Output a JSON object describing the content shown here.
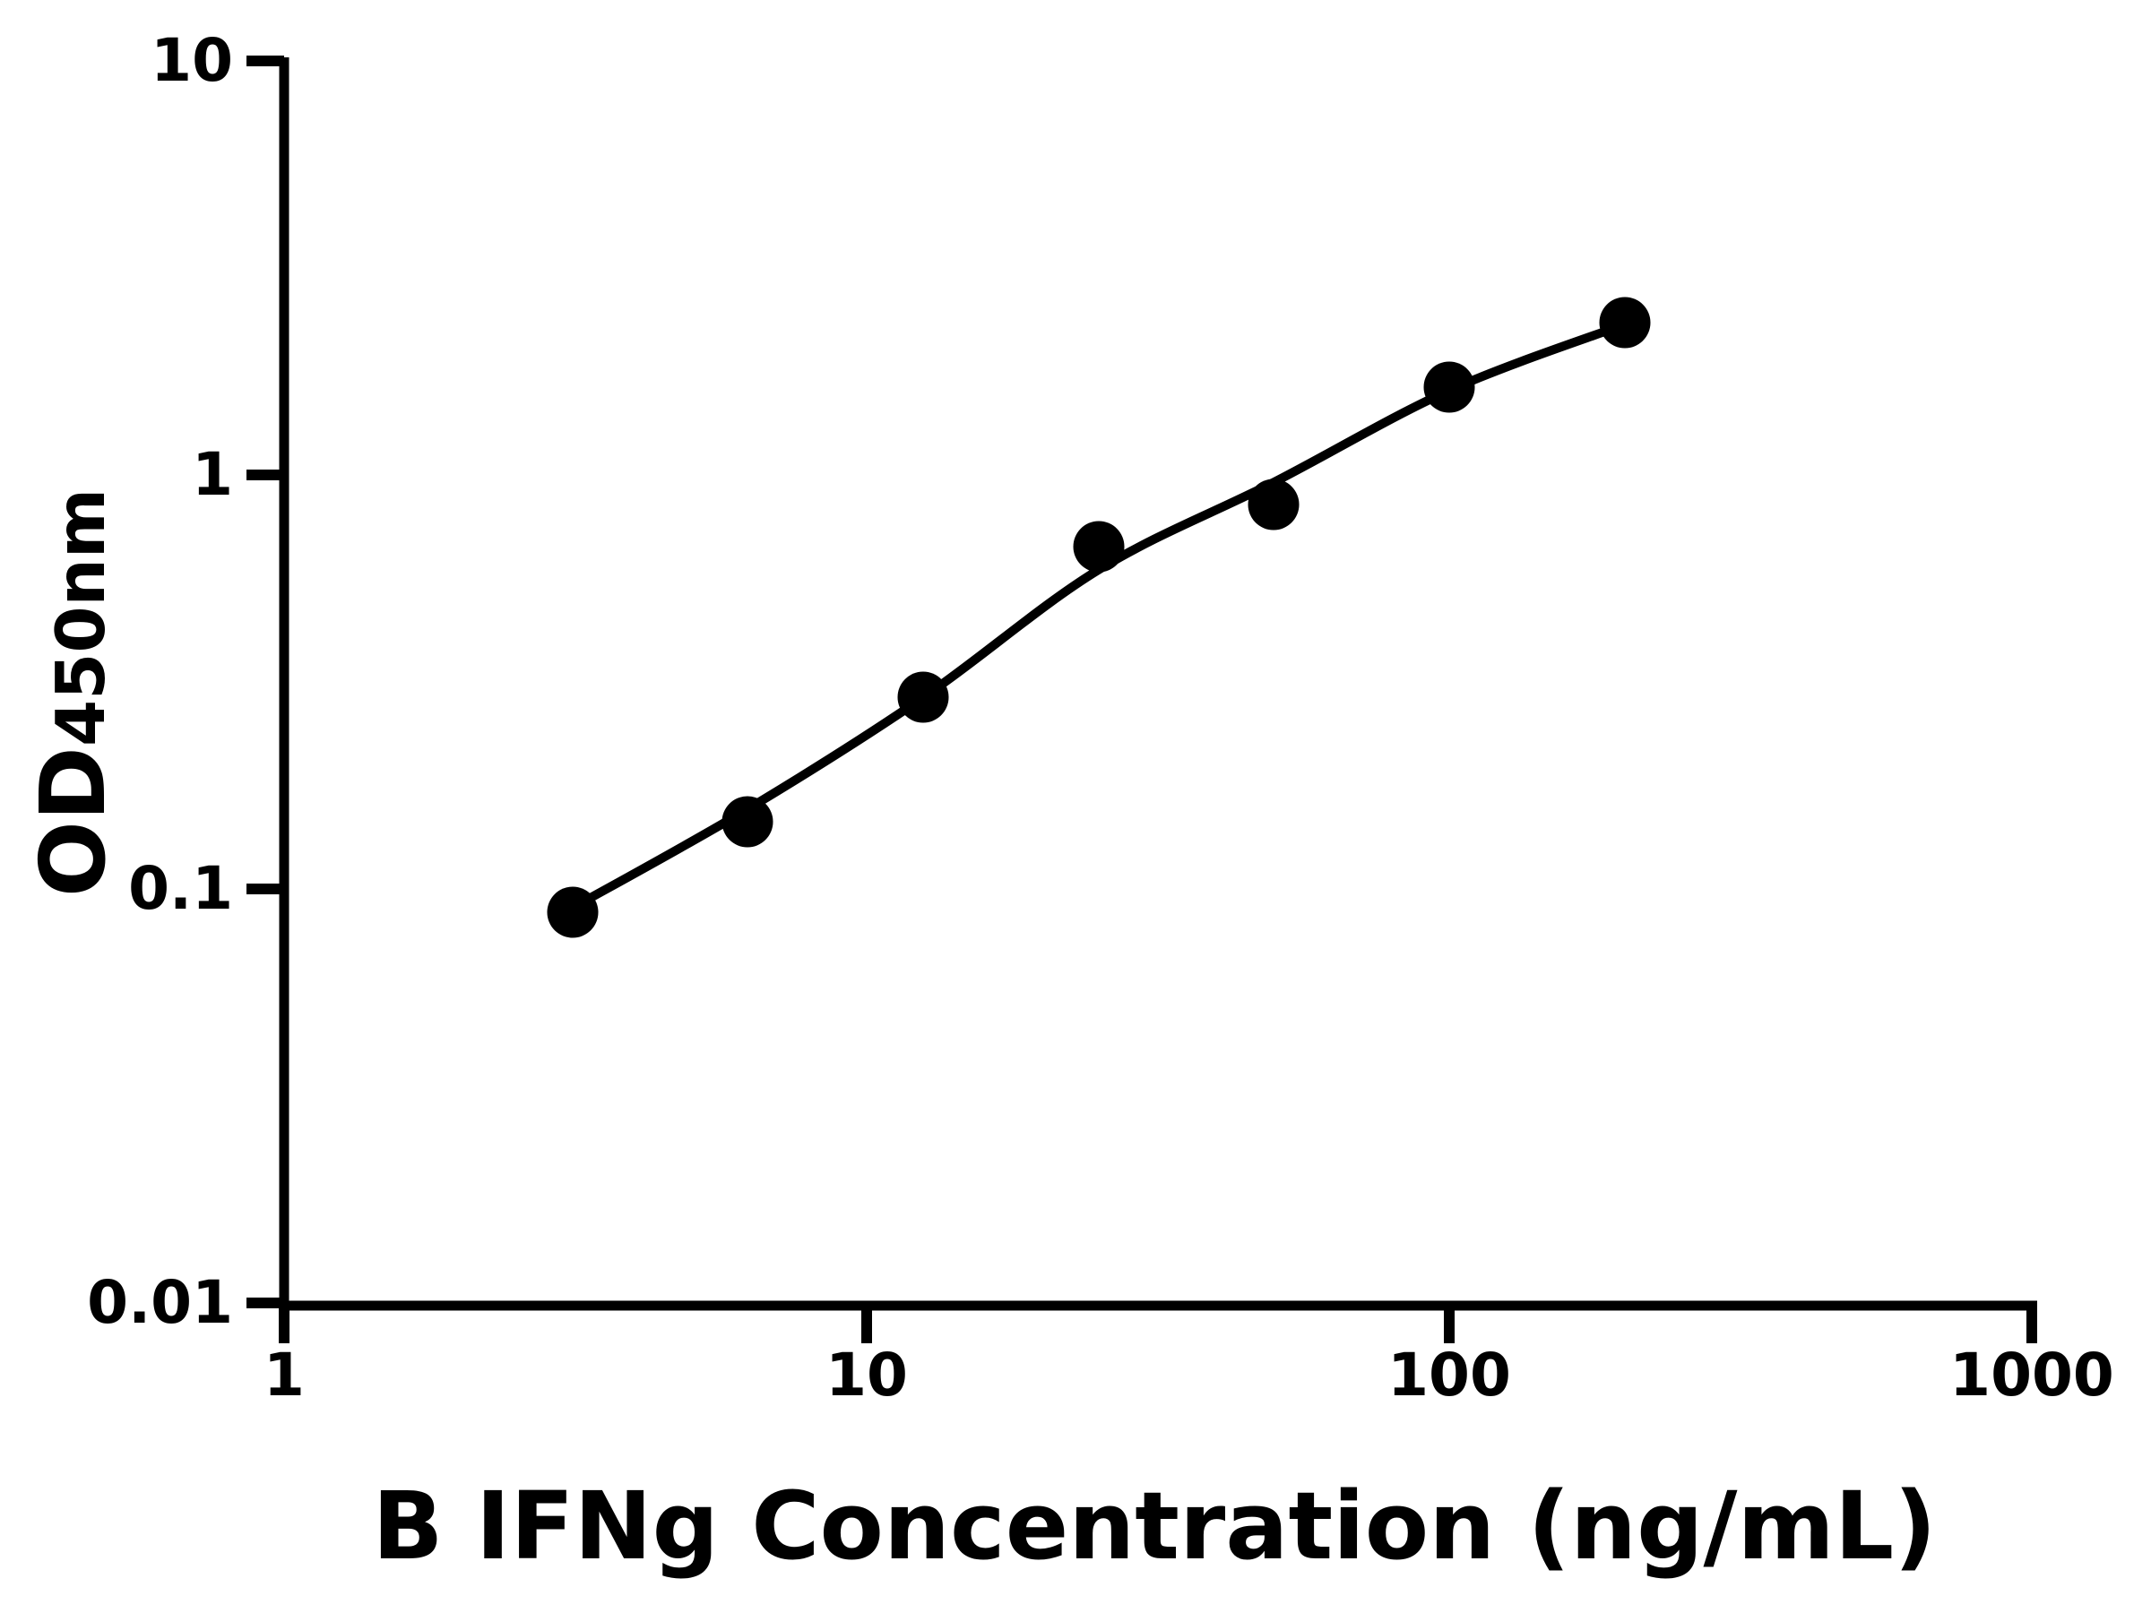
{
  "figure": {
    "background_color": "#ffffff",
    "line_color": "#000000",
    "marker_color": "#000000"
  },
  "chart_data": {
    "type": "scatter",
    "title": "",
    "xlabel": "B IFNg Concentration (ng/mL)",
    "ylabel": "OD450nm",
    "ylabel_base": "OD",
    "ylabel_subscript": "450nm",
    "x_scale": "log10",
    "y_scale": "log10",
    "xlim": [
      1,
      1000
    ],
    "ylim": [
      0.01,
      10
    ],
    "x_ticks": [
      1,
      10,
      100,
      1000
    ],
    "x_tick_labels": [
      "1",
      "10",
      "100",
      "1000"
    ],
    "y_ticks": [
      10,
      1,
      0.1,
      0.01
    ],
    "y_tick_labels": [
      "10",
      "1",
      "0.1",
      "0.01"
    ],
    "grid": false,
    "legend": null,
    "series": [
      {
        "name": "standard-points",
        "marker": "filled-circle",
        "color": "#000000",
        "x": [
          3.125,
          6.25,
          12.5,
          25,
          50,
          100,
          200
        ],
        "y": [
          0.088,
          0.145,
          0.29,
          0.67,
          0.85,
          1.63,
          2.33
        ]
      }
    ],
    "fit_curve": {
      "name": "fit-curve",
      "color": "#000000",
      "x": [
        3.125,
        6.25,
        12.5,
        25,
        50,
        100,
        200
      ],
      "y": [
        0.09,
        0.156,
        0.29,
        0.59,
        0.96,
        1.6,
        2.31
      ]
    }
  }
}
